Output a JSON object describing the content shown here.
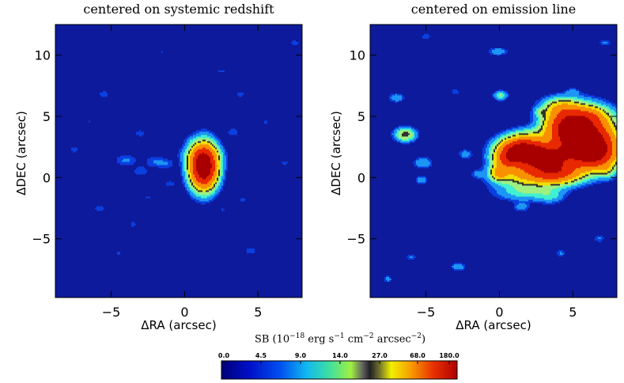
{
  "chart_data": [
    {
      "type": "heatmap",
      "title": "centered on systemic redshift",
      "xlabel": "ΔRA (arcsec)",
      "ylabel": "ΔDEC (arcsec)",
      "xlim": [
        -8.8,
        8.0
      ],
      "ylim": [
        -9.8,
        12.5
      ],
      "xticks": [
        -5,
        0,
        5
      ],
      "yticks": [
        -5,
        0,
        5,
        10
      ],
      "blobs": [
        {
          "x": 1.3,
          "y": 0.9,
          "sx": 0.55,
          "sy": 1.05,
          "peak": 170
        },
        {
          "x": 1.1,
          "y": 1.9,
          "sx": 0.8,
          "sy": 0.45,
          "peak": 12
        },
        {
          "x": -4.0,
          "y": 1.4,
          "sx": 0.55,
          "sy": 0.35,
          "peak": 5
        },
        {
          "x": -2.0,
          "y": 1.3,
          "sx": 0.5,
          "sy": 0.35,
          "peak": 4.5
        },
        {
          "x": -3.0,
          "y": 0.5,
          "sx": 0.4,
          "sy": 0.3,
          "peak": 4
        },
        {
          "x": -1.2,
          "y": 1.1,
          "sx": 0.4,
          "sy": 0.3,
          "peak": 3.5
        },
        {
          "x": -5.5,
          "y": 6.8,
          "sx": 0.3,
          "sy": 0.25,
          "peak": 4
        },
        {
          "x": -3.0,
          "y": 3.6,
          "sx": 0.35,
          "sy": 0.25,
          "peak": 3.5
        },
        {
          "x": -7.5,
          "y": 2.3,
          "sx": 0.3,
          "sy": 0.25,
          "peak": 3.5
        },
        {
          "x": -1.0,
          "y": -0.5,
          "sx": 0.35,
          "sy": 0.25,
          "peak": 3.2
        },
        {
          "x": 3.3,
          "y": 3.7,
          "sx": 0.4,
          "sy": 0.3,
          "peak": 3.5
        },
        {
          "x": 3.8,
          "y": 6.8,
          "sx": 0.3,
          "sy": 0.25,
          "peak": 3.2
        },
        {
          "x": 2.5,
          "y": 8.7,
          "sx": 0.3,
          "sy": 0.2,
          "peak": 3
        },
        {
          "x": -5.8,
          "y": -2.5,
          "sx": 0.35,
          "sy": 0.25,
          "peak": 3.5
        },
        {
          "x": 4.0,
          "y": -1.8,
          "sx": 0.3,
          "sy": 0.25,
          "peak": 3
        },
        {
          "x": 4.5,
          "y": -6.0,
          "sx": 0.35,
          "sy": 0.25,
          "peak": 3.5
        },
        {
          "x": -3.5,
          "y": -3.8,
          "sx": 0.3,
          "sy": 0.25,
          "peak": 3
        },
        {
          "x": 7.5,
          "y": 11.0,
          "sx": 0.3,
          "sy": 0.2,
          "peak": 3.5
        },
        {
          "x": -4.5,
          "y": -6.2,
          "sx": 0.25,
          "sy": 0.2,
          "peak": 2.8
        },
        {
          "x": 6.8,
          "y": 1.2,
          "sx": 0.3,
          "sy": 0.25,
          "peak": 3
        },
        {
          "x": 0.4,
          "y": 3.0,
          "sx": 0.3,
          "sy": 0.25,
          "peak": 3
        },
        {
          "x": -1.5,
          "y": 10.2,
          "sx": 0.25,
          "sy": 0.2,
          "peak": 2.6
        },
        {
          "x": 5.5,
          "y": 4.5,
          "sx": 0.3,
          "sy": 0.2,
          "peak": 2.8
        },
        {
          "x": -6.5,
          "y": 4.6,
          "sx": 0.25,
          "sy": 0.2,
          "peak": 2.6
        },
        {
          "x": -2.5,
          "y": -1.6,
          "sx": 0.3,
          "sy": 0.2,
          "peak": 2.7
        },
        {
          "x": 2.6,
          "y": -2.6,
          "sx": 0.3,
          "sy": 0.2,
          "peak": 2.7
        }
      ]
    },
    {
      "type": "heatmap",
      "title": "centered on emission line",
      "xlabel": "ΔRA (arcsec)",
      "ylabel": "ΔDEC (arcsec)",
      "xlim": [
        -8.8,
        8.0
      ],
      "ylim": [
        -9.8,
        12.5
      ],
      "xticks": [
        -5,
        0,
        5
      ],
      "yticks": [
        -5,
        0,
        5,
        10
      ],
      "blobs": [
        {
          "x": 1.5,
          "y": 2.3,
          "sx": 0.9,
          "sy": 0.6,
          "peak": 120
        },
        {
          "x": 3.0,
          "y": 1.6,
          "sx": 1.3,
          "sy": 0.75,
          "peak": 130
        },
        {
          "x": 5.8,
          "y": 3.2,
          "sx": 1.2,
          "sy": 1.2,
          "peak": 150
        },
        {
          "x": 4.6,
          "y": 4.2,
          "sx": 0.9,
          "sy": 0.9,
          "peak": 90
        },
        {
          "x": 6.5,
          "y": 2.0,
          "sx": 0.9,
          "sy": 0.8,
          "peak": 100
        },
        {
          "x": 0.6,
          "y": 1.5,
          "sx": 0.6,
          "sy": 0.5,
          "peak": 60
        },
        {
          "x": 2.2,
          "y": 0.2,
          "sx": 1.5,
          "sy": 0.6,
          "peak": 40
        },
        {
          "x": 4.0,
          "y": 0.4,
          "sx": 1.0,
          "sy": 0.55,
          "peak": 60
        },
        {
          "x": 0.0,
          "y": 0.4,
          "sx": 0.4,
          "sy": 0.4,
          "peak": 40
        },
        {
          "x": 4.2,
          "y": 5.7,
          "sx": 0.8,
          "sy": 0.5,
          "peak": 28
        },
        {
          "x": 6.0,
          "y": 5.0,
          "sx": 0.8,
          "sy": 0.5,
          "peak": 35
        },
        {
          "x": 1.8,
          "y": -1.2,
          "sx": 1.3,
          "sy": 0.45,
          "peak": 12
        },
        {
          "x": 3.5,
          "y": -1.5,
          "sx": 0.6,
          "sy": 0.4,
          "peak": 8
        },
        {
          "x": 7.3,
          "y": 0.6,
          "sx": 0.4,
          "sy": 0.4,
          "peak": 14
        },
        {
          "x": 2.2,
          "y": 3.5,
          "sx": 0.9,
          "sy": 0.4,
          "peak": 10
        },
        {
          "x": -6.4,
          "y": 3.5,
          "sx": 0.45,
          "sy": 0.35,
          "peak": 26
        },
        {
          "x": -5.2,
          "y": 1.2,
          "sx": 0.4,
          "sy": 0.3,
          "peak": 9
        },
        {
          "x": -5.3,
          "y": -0.2,
          "sx": 0.3,
          "sy": 0.25,
          "peak": 7
        },
        {
          "x": -7.0,
          "y": 6.5,
          "sx": 0.35,
          "sy": 0.25,
          "peak": 8
        },
        {
          "x": 0.1,
          "y": 6.7,
          "sx": 0.3,
          "sy": 0.25,
          "peak": 15
        },
        {
          "x": -0.1,
          "y": 10.3,
          "sx": 0.4,
          "sy": 0.2,
          "peak": 9
        },
        {
          "x": -2.3,
          "y": 1.9,
          "sx": 0.3,
          "sy": 0.25,
          "peak": 7
        },
        {
          "x": -1.5,
          "y": 0.3,
          "sx": 0.25,
          "sy": 0.2,
          "peak": 5
        },
        {
          "x": -2.8,
          "y": -7.3,
          "sx": 0.3,
          "sy": 0.2,
          "peak": 9
        },
        {
          "x": 4.2,
          "y": -6.2,
          "sx": 0.25,
          "sy": 0.2,
          "peak": 5
        },
        {
          "x": 6.8,
          "y": -5.0,
          "sx": 0.25,
          "sy": 0.2,
          "peak": 5
        },
        {
          "x": -6.0,
          "y": -6.5,
          "sx": 0.25,
          "sy": 0.2,
          "peak": 5
        },
        {
          "x": 2.8,
          "y": 5.3,
          "sx": 0.3,
          "sy": 0.25,
          "peak": 9
        },
        {
          "x": -3.0,
          "y": 7.0,
          "sx": 0.25,
          "sy": 0.2,
          "peak": 4
        },
        {
          "x": 5.0,
          "y": 7.0,
          "sx": 0.3,
          "sy": 0.2,
          "peak": 6
        },
        {
          "x": -7.6,
          "y": -8.3,
          "sx": 0.2,
          "sy": 0.2,
          "peak": 6
        },
        {
          "x": 7.2,
          "y": 11.0,
          "sx": 0.3,
          "sy": 0.2,
          "peak": 5
        },
        {
          "x": -5.0,
          "y": 11.5,
          "sx": 0.25,
          "sy": 0.2,
          "peak": 4
        },
        {
          "x": 1.5,
          "y": -2.4,
          "sx": 0.35,
          "sy": 0.25,
          "peak": 7
        }
      ]
    }
  ],
  "colorbar": {
    "label_prefix": "SB (10",
    "label_exp1": "−18",
    "label_mid": " erg s",
    "label_exp2": "−1",
    "label_mid2": " cm",
    "label_exp3": "−2",
    "label_mid3": " arcsec",
    "label_exp4": "−2",
    "label_suffix": ")",
    "ticks": [
      "0.0",
      "4.5",
      "9.0",
      "14.0",
      "27.0",
      "68.0",
      "180.0"
    ]
  },
  "colors": {
    "background": "#0d1a9c",
    "outline": "#1a1a1a"
  }
}
